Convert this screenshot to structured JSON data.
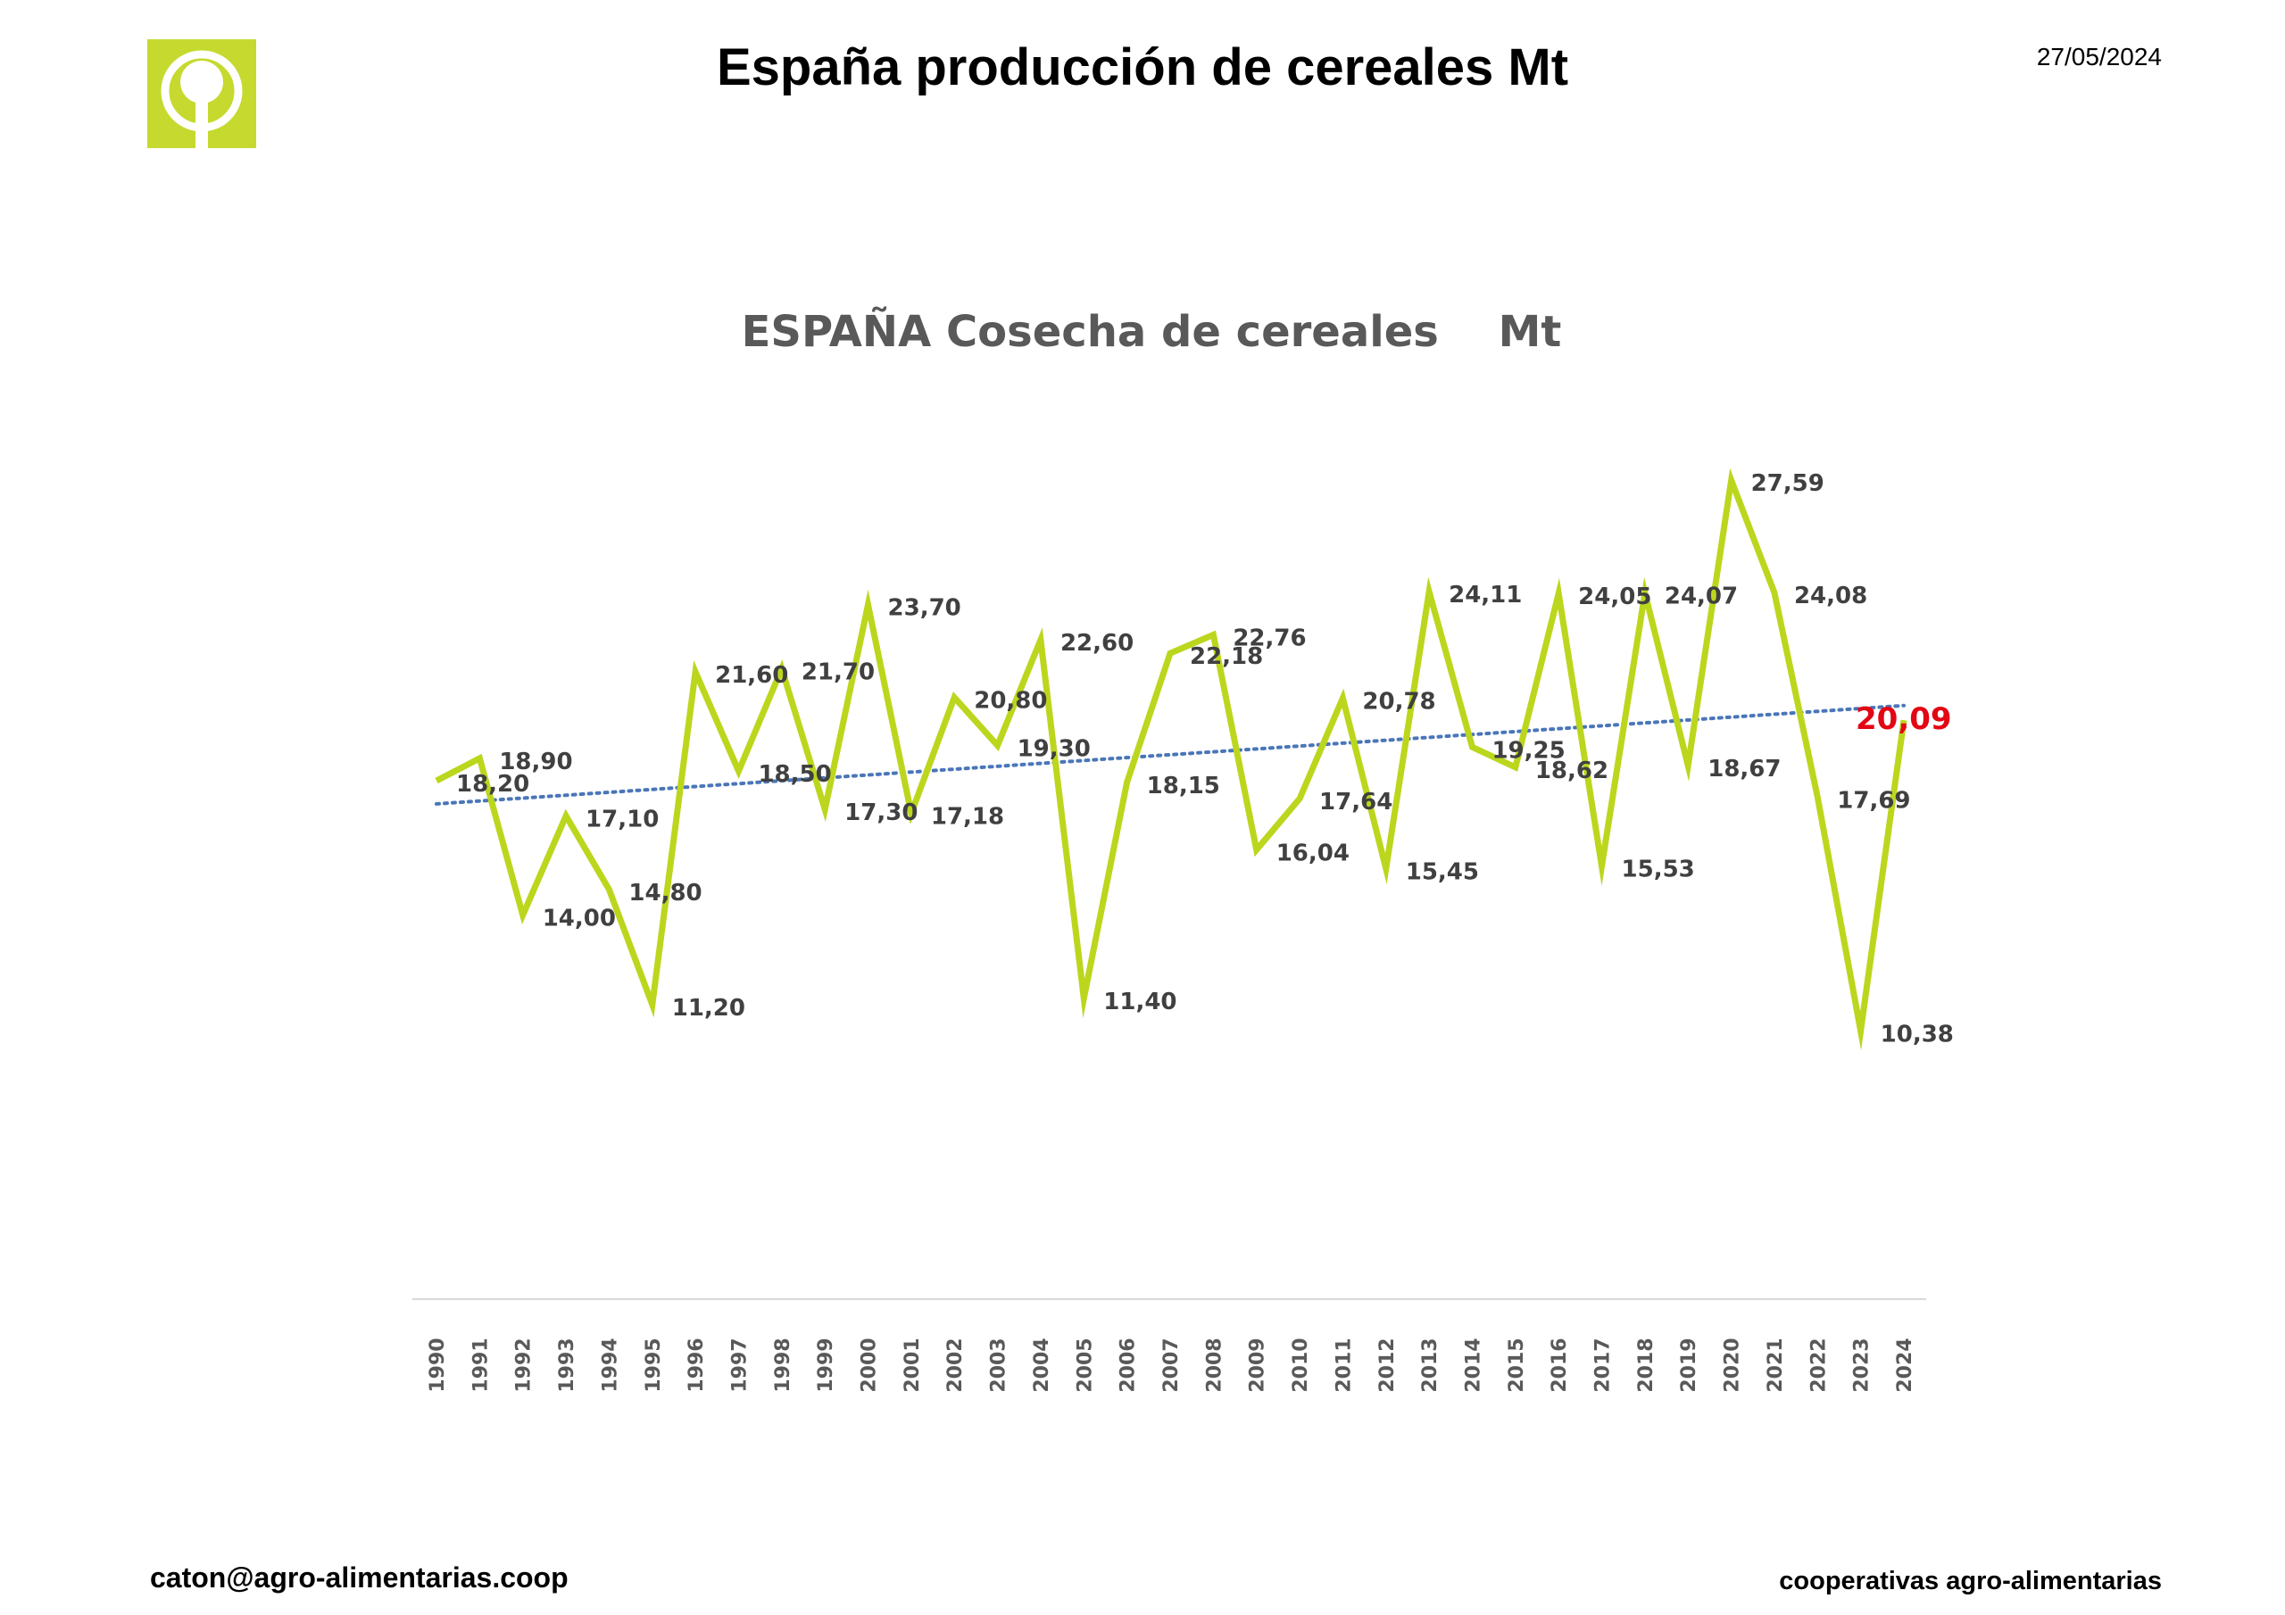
{
  "page": {
    "title": "España producción de cereales Mt",
    "date": "27/05/2024",
    "footer_left": "caton@agro-alimentarias.coop",
    "footer_right": "cooperativas agro-alimentarias"
  },
  "logo": {
    "icon": "tree-in-circle-icon",
    "color": "#c6d92e"
  },
  "chart_data": {
    "type": "line",
    "title": "ESPAÑA Cosecha de cereales    Mt",
    "xlabel": "",
    "ylabel": "",
    "ylim": [
      2,
      32
    ],
    "grid": false,
    "legend": "none",
    "categories": [
      "1990",
      "1991",
      "1992",
      "1993",
      "1994",
      "1995",
      "1996",
      "1997",
      "1998",
      "1999",
      "2000",
      "2001",
      "2002",
      "2003",
      "2004",
      "2005",
      "2006",
      "2007",
      "2008",
      "2009",
      "2010",
      "2011",
      "2012",
      "2013",
      "2014",
      "2015",
      "2016",
      "2017",
      "2018",
      "2019",
      "2020",
      "2021",
      "2022",
      "2023",
      "2024"
    ],
    "series": [
      {
        "values": [
          18.2,
          18.9,
          14.0,
          17.1,
          14.8,
          11.2,
          21.6,
          18.5,
          21.7,
          17.3,
          23.7,
          17.18,
          20.8,
          19.3,
          22.6,
          11.4,
          18.15,
          22.18,
          22.76,
          16.04,
          17.64,
          20.78,
          15.45,
          24.11,
          19.25,
          18.62,
          24.05,
          15.53,
          24.07,
          18.67,
          27.59,
          24.08,
          17.69,
          10.38,
          20.09
        ],
        "labels": [
          "18,20",
          "18,90",
          "14,00",
          "17,10",
          "14,80",
          "11,20",
          "21,60",
          "18,50",
          "21,70",
          "17,30",
          "23,70",
          "17,18",
          "20,80",
          "19,30",
          "22,60",
          "11,40",
          "18,15",
          "22,18",
          "22,76",
          "16,04",
          null,
          "20,78",
          "15,45",
          "24,11",
          "19,25",
          "18,62",
          "24,05",
          "15,53",
          "24,07",
          "18,67",
          "27,59",
          "24,08",
          "17,69",
          "10,38",
          "20,09"
        ],
        "color": "#bcd61d"
      }
    ],
    "extra_labels": [
      "17,64"
    ],
    "trendline": {
      "style": "dotted",
      "color": "#4a76b8"
    },
    "highlight": {
      "index": 34,
      "color": "#e30613"
    }
  }
}
